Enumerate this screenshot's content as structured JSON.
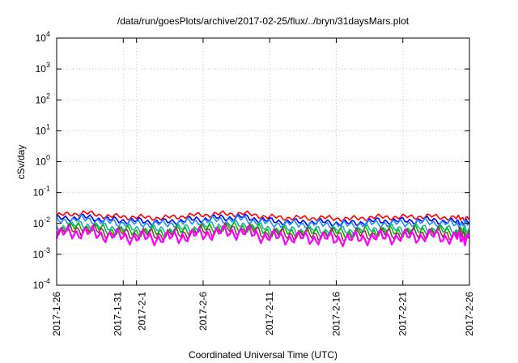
{
  "chart_data": {
    "type": "line",
    "title": "/data/run/goesPlots/archive/2017-02-25/flux/../bryn/31daysMars.plot",
    "xlabel": "Coordinated Universal Time (UTC)",
    "ylabel": "cSv/day",
    "y_scale": "log",
    "ylim": [
      0.0001,
      10000
    ],
    "xlim": [
      "2017-1-26",
      "2017-2-26"
    ],
    "grid": true,
    "legend": "none",
    "y_ticks": [
      {
        "base": "10",
        "exp": "-4",
        "value": 0.0001
      },
      {
        "base": "10",
        "exp": "-3",
        "value": 0.001
      },
      {
        "base": "10",
        "exp": "-2",
        "value": 0.01
      },
      {
        "base": "10",
        "exp": "-1",
        "value": 0.1
      },
      {
        "base": "10",
        "exp": "0",
        "value": 1
      },
      {
        "base": "10",
        "exp": "1",
        "value": 10
      },
      {
        "base": "10",
        "exp": "2",
        "value": 100
      },
      {
        "base": "10",
        "exp": "3",
        "value": 1000
      },
      {
        "base": "10",
        "exp": "4",
        "value": 10000
      }
    ],
    "x_ticks": [
      "2017-1-26",
      "2017-1-31",
      "2017-2-1",
      "2017-2-6",
      "2017-2-11",
      "2017-2-16",
      "2017-2-21",
      "2017-2-26"
    ],
    "x": [
      "2017-1-26",
      "2017-1-28",
      "2017-1-30",
      "2017-2-1",
      "2017-2-3",
      "2017-2-5",
      "2017-2-7",
      "2017-2-9",
      "2017-2-11",
      "2017-2-13",
      "2017-2-15",
      "2017-2-17",
      "2017-2-19",
      "2017-2-21",
      "2017-2-23",
      "2017-2-25",
      "2017-2-26"
    ],
    "series": [
      {
        "color": "#ff0000",
        "values": [
          0.018,
          0.022,
          0.017,
          0.016,
          0.015,
          0.018,
          0.02,
          0.021,
          0.016,
          0.015,
          0.015,
          0.014,
          0.016,
          0.016,
          0.017,
          0.015,
          0.015
        ]
      },
      {
        "color": "#0000ff",
        "values": [
          0.014,
          0.016,
          0.013,
          0.012,
          0.011,
          0.013,
          0.015,
          0.016,
          0.012,
          0.011,
          0.011,
          0.01,
          0.012,
          0.012,
          0.013,
          0.011,
          0.011
        ]
      },
      {
        "color": "#1e90ff",
        "values": [
          0.012,
          0.014,
          0.011,
          0.01,
          0.0095,
          0.011,
          0.013,
          0.014,
          0.01,
          0.0095,
          0.0095,
          0.009,
          0.01,
          0.01,
          0.011,
          0.0095,
          0.0095
        ]
      },
      {
        "color": "#20b2aa",
        "values": [
          0.0075,
          0.009,
          0.007,
          0.0065,
          0.006,
          0.007,
          0.0085,
          0.009,
          0.0065,
          0.006,
          0.006,
          0.0058,
          0.0065,
          0.0065,
          0.007,
          0.006,
          0.006
        ]
      },
      {
        "color": "#00c000",
        "values": [
          0.0065,
          0.0078,
          0.006,
          0.0055,
          0.0052,
          0.006,
          0.0072,
          0.0078,
          0.0056,
          0.0052,
          0.0052,
          0.005,
          0.0056,
          0.0056,
          0.006,
          0.0052,
          0.0052
        ]
      },
      {
        "color": "#9b2f5a",
        "values": [
          0.0055,
          0.0066,
          0.005,
          0.0046,
          0.0044,
          0.005,
          0.0061,
          0.0066,
          0.0047,
          0.0044,
          0.0044,
          0.0042,
          0.0047,
          0.0047,
          0.005,
          0.0044,
          0.0044
        ]
      },
      {
        "color": "#ff00ff",
        "values": [
          0.0045,
          0.0052,
          0.004,
          0.0035,
          0.0033,
          0.004,
          0.005,
          0.0052,
          0.0036,
          0.0034,
          0.0033,
          0.0031,
          0.0036,
          0.0036,
          0.004,
          0.0034,
          0.0034
        ]
      }
    ]
  }
}
